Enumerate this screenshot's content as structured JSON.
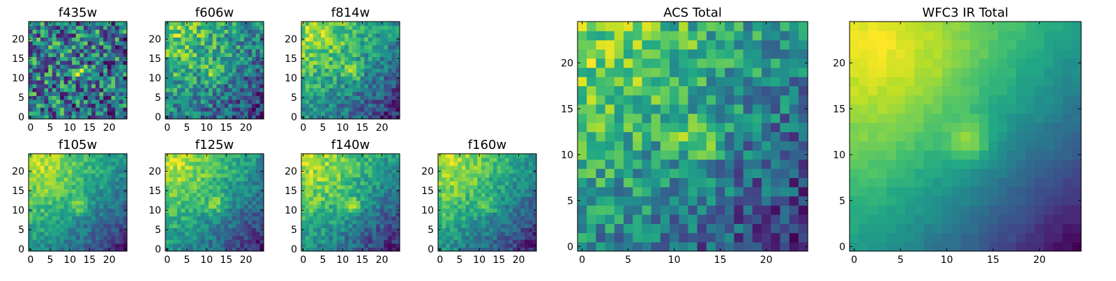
{
  "chart_data": [
    {
      "type": "heatmap",
      "title": "f435w",
      "nx": 25,
      "ny": 25,
      "xlim": [
        -0.5,
        24.5
      ],
      "ylim": [
        -0.5,
        24.5
      ],
      "xticks": [
        0,
        5,
        10,
        15,
        20
      ],
      "yticks": [
        0,
        5,
        10,
        15,
        20
      ],
      "colormap": "viridis",
      "structure": {
        "noise": 0.55,
        "bright_corner": 0.05,
        "center_spot": 0.25,
        "falloff": 0.1
      },
      "seed": 11
    },
    {
      "type": "heatmap",
      "title": "f606w",
      "nx": 25,
      "ny": 25,
      "xlim": [
        -0.5,
        24.5
      ],
      "ylim": [
        -0.5,
        24.5
      ],
      "xticks": [
        0,
        5,
        10,
        15,
        20
      ],
      "yticks": [
        0,
        5,
        10,
        15,
        20
      ],
      "colormap": "viridis",
      "structure": {
        "noise": 0.35,
        "bright_corner": 0.45,
        "center_spot": 0.35,
        "falloff": 0.3
      },
      "seed": 23
    },
    {
      "type": "heatmap",
      "title": "f814w",
      "nx": 25,
      "ny": 25,
      "xlim": [
        -0.5,
        24.5
      ],
      "ylim": [
        -0.5,
        24.5
      ],
      "xticks": [
        0,
        5,
        10,
        15,
        20
      ],
      "yticks": [
        0,
        5,
        10,
        15,
        20
      ],
      "colormap": "viridis",
      "structure": {
        "noise": 0.3,
        "bright_corner": 0.6,
        "center_spot": 0.35,
        "falloff": 0.45
      },
      "seed": 37
    },
    {
      "type": "heatmap",
      "title": "f105w",
      "nx": 25,
      "ny": 25,
      "xlim": [
        -0.5,
        24.5
      ],
      "ylim": [
        -0.5,
        24.5
      ],
      "xticks": [
        0,
        5,
        10,
        15,
        20
      ],
      "yticks": [
        0,
        5,
        10,
        15,
        20
      ],
      "colormap": "viridis",
      "structure": {
        "noise": 0.22,
        "bright_corner": 0.7,
        "center_spot": 0.35,
        "falloff": 0.6
      },
      "seed": 41
    },
    {
      "type": "heatmap",
      "title": "f125w",
      "nx": 25,
      "ny": 25,
      "xlim": [
        -0.5,
        24.5
      ],
      "ylim": [
        -0.5,
        24.5
      ],
      "xticks": [
        0,
        5,
        10,
        15,
        20
      ],
      "yticks": [
        0,
        5,
        10,
        15,
        20
      ],
      "colormap": "viridis",
      "structure": {
        "noise": 0.22,
        "bright_corner": 0.65,
        "center_spot": 0.3,
        "falloff": 0.55
      },
      "seed": 53
    },
    {
      "type": "heatmap",
      "title": "f140w",
      "nx": 25,
      "ny": 25,
      "xlim": [
        -0.5,
        24.5
      ],
      "ylim": [
        -0.5,
        24.5
      ],
      "xticks": [
        0,
        5,
        10,
        15,
        20
      ],
      "yticks": [
        0,
        5,
        10,
        15,
        20
      ],
      "colormap": "viridis",
      "structure": {
        "noise": 0.25,
        "bright_corner": 0.7,
        "center_spot": 0.35,
        "falloff": 0.6
      },
      "seed": 67
    },
    {
      "type": "heatmap",
      "title": "f160w",
      "nx": 25,
      "ny": 25,
      "xlim": [
        -0.5,
        24.5
      ],
      "ylim": [
        -0.5,
        24.5
      ],
      "xticks": [
        0,
        5,
        10,
        15,
        20
      ],
      "yticks": [
        0,
        5,
        10,
        15,
        20
      ],
      "colormap": "viridis",
      "structure": {
        "noise": 0.25,
        "bright_corner": 0.75,
        "center_spot": 0.3,
        "falloff": 0.65
      },
      "seed": 79
    },
    {
      "type": "heatmap",
      "title": "ACS Total",
      "nx": 25,
      "ny": 25,
      "xlim": [
        -0.5,
        24.5
      ],
      "ylim": [
        -0.5,
        24.5
      ],
      "xticks": [
        0,
        5,
        10,
        15,
        20
      ],
      "yticks": [
        0,
        5,
        10,
        15,
        20
      ],
      "colormap": "viridis",
      "structure": {
        "noise": 0.3,
        "bright_corner": 0.45,
        "center_spot": 0.3,
        "falloff": 0.35
      },
      "seed": 97
    },
    {
      "type": "heatmap",
      "title": "WFC3 IR Total",
      "nx": 25,
      "ny": 25,
      "xlim": [
        -0.5,
        24.5
      ],
      "ylim": [
        -0.5,
        24.5
      ],
      "xticks": [
        0,
        5,
        10,
        15,
        20
      ],
      "yticks": [
        0,
        5,
        10,
        15,
        20
      ],
      "colormap": "viridis",
      "structure": {
        "noise": 0.06,
        "bright_corner": 0.95,
        "center_spot": 0.35,
        "falloff": 0.9
      },
      "seed": 101
    }
  ]
}
